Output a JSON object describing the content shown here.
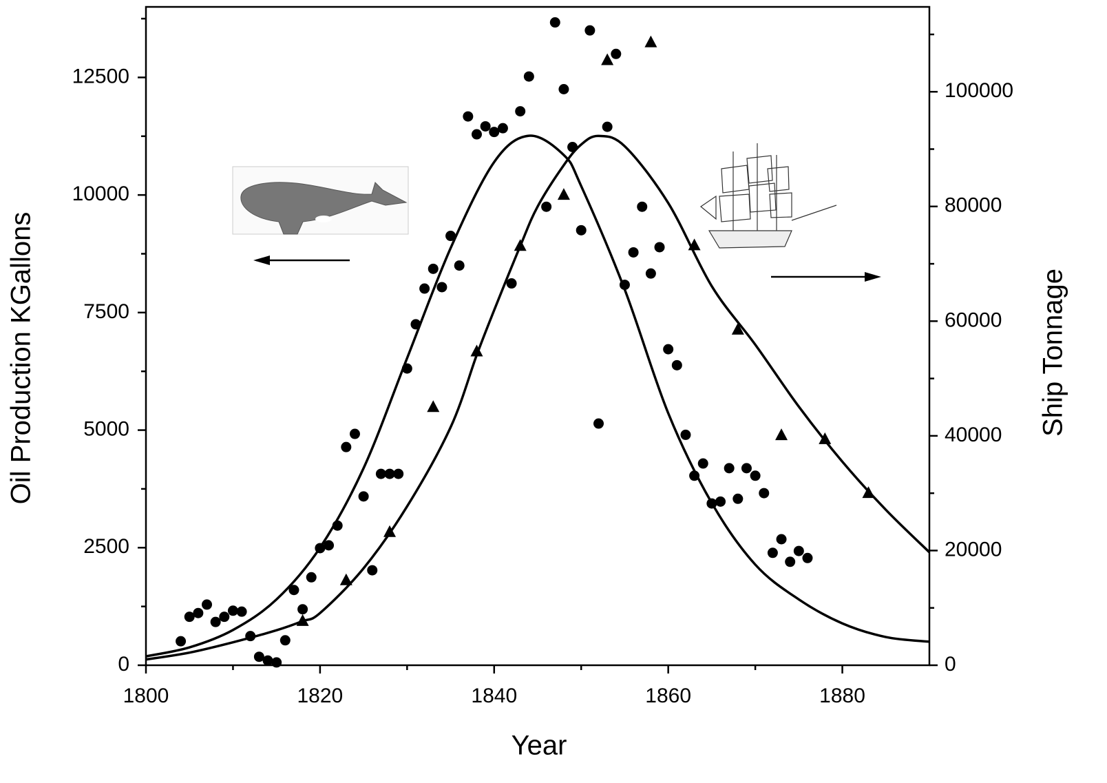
{
  "chart_data": {
    "type": "scatter",
    "xlabel": "Year",
    "ylabel": "Oil Production KGallons",
    "y2label": "Ship Tonnage",
    "xlim": [
      1800,
      1890
    ],
    "xticks": [
      1800,
      1820,
      1840,
      1860,
      1880
    ],
    "ylim": [
      0,
      14000
    ],
    "yticks": [
      0,
      2500,
      5000,
      7500,
      10000,
      12500
    ],
    "y2lim": [
      0,
      114800
    ],
    "y2ticks": [
      0,
      20000,
      40000,
      60000,
      80000,
      100000
    ],
    "series": [
      {
        "type": "scatter",
        "marker": "circle",
        "color": "#000000",
        "x": [
          1804,
          1805,
          1806,
          1807,
          1808,
          1809,
          1810,
          1811,
          1812,
          1813,
          1814,
          1815,
          1816,
          1817,
          1818,
          1819,
          1820,
          1821,
          1822,
          1823,
          1824,
          1825,
          1826,
          1827,
          1828,
          1829,
          1830,
          1831,
          1832,
          1833,
          1834,
          1835,
          1836,
          1837,
          1838,
          1839,
          1840,
          1841,
          1842,
          1843,
          1844,
          1846,
          1847,
          1848,
          1849,
          1850,
          1851,
          1852,
          1853,
          1854,
          1855,
          1856,
          1857,
          1858,
          1859,
          1860,
          1861,
          1862,
          1863,
          1864,
          1865,
          1866,
          1867,
          1868,
          1869,
          1870,
          1871,
          1872,
          1873,
          1874,
          1875,
          1876
        ],
        "values": [
          510,
          1030,
          1110,
          1290,
          920,
          1030,
          1160,
          1140,
          620,
          180,
          100,
          60,
          530,
          1600,
          1190,
          1870,
          2490,
          2550,
          2970,
          4640,
          4920,
          3590,
          2020,
          4070,
          4070,
          4070,
          6310,
          7250,
          8010,
          8430,
          8040,
          9130,
          8500,
          11670,
          11290,
          11460,
          11340,
          11420,
          8120,
          11780,
          12520,
          9750,
          13670,
          12250,
          11020,
          9250,
          13500,
          5140,
          11450,
          13000,
          8090,
          8780,
          9750,
          8330,
          8890,
          6720,
          6380,
          4900,
          4030,
          4290,
          3440,
          3480,
          4190,
          3540,
          4190,
          4030,
          3660,
          2390,
          2680,
          2200,
          2430,
          2280
        ]
      },
      {
        "type": "scatter",
        "marker": "triangle",
        "color": "#000000",
        "axis": "y2",
        "x": [
          1818,
          1823,
          1828,
          1833,
          1838,
          1843,
          1848,
          1853,
          1858,
          1863,
          1868,
          1873,
          1878,
          1883
        ],
        "values": [
          7700,
          14800,
          23200,
          45000,
          54700,
          73100,
          82000,
          105500,
          108600,
          73200,
          58500,
          40100,
          39400,
          30000
        ]
      },
      {
        "type": "line",
        "color": "#000000",
        "x": [
          1800,
          1805,
          1810,
          1815,
          1820,
          1825,
          1830,
          1835,
          1840,
          1844,
          1848,
          1850,
          1855,
          1860,
          1865,
          1870,
          1875,
          1880,
          1885,
          1890
        ],
        "values": [
          190,
          380,
          750,
          1400,
          2500,
          4190,
          6530,
          8870,
          10700,
          11260,
          10850,
          10190,
          7990,
          5360,
          3450,
          2140,
          1400,
          890,
          600,
          500
        ]
      },
      {
        "type": "line",
        "color": "#000000",
        "axis": "y2",
        "x": [
          1800,
          1805,
          1810,
          1815,
          1818,
          1820,
          1825,
          1830,
          1835,
          1838,
          1840,
          1843,
          1845,
          1848,
          1850,
          1852,
          1855,
          1860,
          1865,
          1870,
          1875,
          1880,
          1885,
          1890
        ],
        "values": [
          1000,
          2200,
          4000,
          6100,
          7700,
          9100,
          16900,
          27700,
          41500,
          54100,
          61900,
          73100,
          80000,
          87200,
          90800,
          92300,
          90500,
          80600,
          66100,
          55900,
          45100,
          35500,
          27100,
          19700
        ]
      }
    ]
  }
}
